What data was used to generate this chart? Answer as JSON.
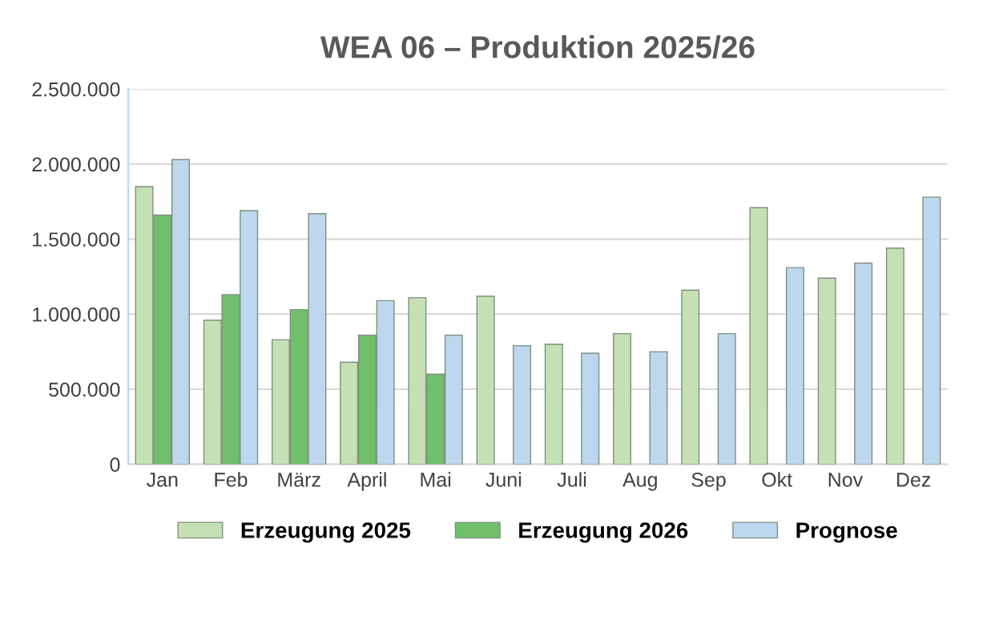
{
  "chart_data": {
    "type": "bar",
    "title": "WEA 06 – Produktion 2025/26",
    "categories": [
      "Jan",
      "Feb",
      "März",
      "April",
      "Mai",
      "Juni",
      "Juli",
      "Aug",
      "Sep",
      "Okt",
      "Nov",
      "Dez"
    ],
    "series": [
      {
        "name": "Erzeugung 2025",
        "color": "#c5e0b4",
        "values": [
          1850000,
          960000,
          830000,
          680000,
          1110000,
          1120000,
          800000,
          870000,
          1160000,
          1710000,
          1240000,
          1440000
        ]
      },
      {
        "name": "Erzeugung 2026",
        "color": "#70bf6a",
        "values": [
          1660000,
          1130000,
          1030000,
          860000,
          600000,
          null,
          null,
          null,
          null,
          null,
          null,
          null
        ]
      },
      {
        "name": "Prognose",
        "color": "#bdd7ee",
        "values": [
          2030000,
          1690000,
          1670000,
          1090000,
          860000,
          790000,
          740000,
          750000,
          870000,
          1310000,
          1340000,
          1780000
        ]
      }
    ],
    "ylim": [
      0,
      2500000
    ],
    "yticks": [
      {
        "value": 0,
        "label": "0"
      },
      {
        "value": 500000,
        "label": "500.000"
      },
      {
        "value": 1000000,
        "label": "1.000.000"
      },
      {
        "value": 1500000,
        "label": "1.500.000"
      },
      {
        "value": 2000000,
        "label": "2.000.000"
      },
      {
        "value": 2500000,
        "label": "2.500.000"
      }
    ],
    "grid": "y",
    "legend": "bottom"
  }
}
